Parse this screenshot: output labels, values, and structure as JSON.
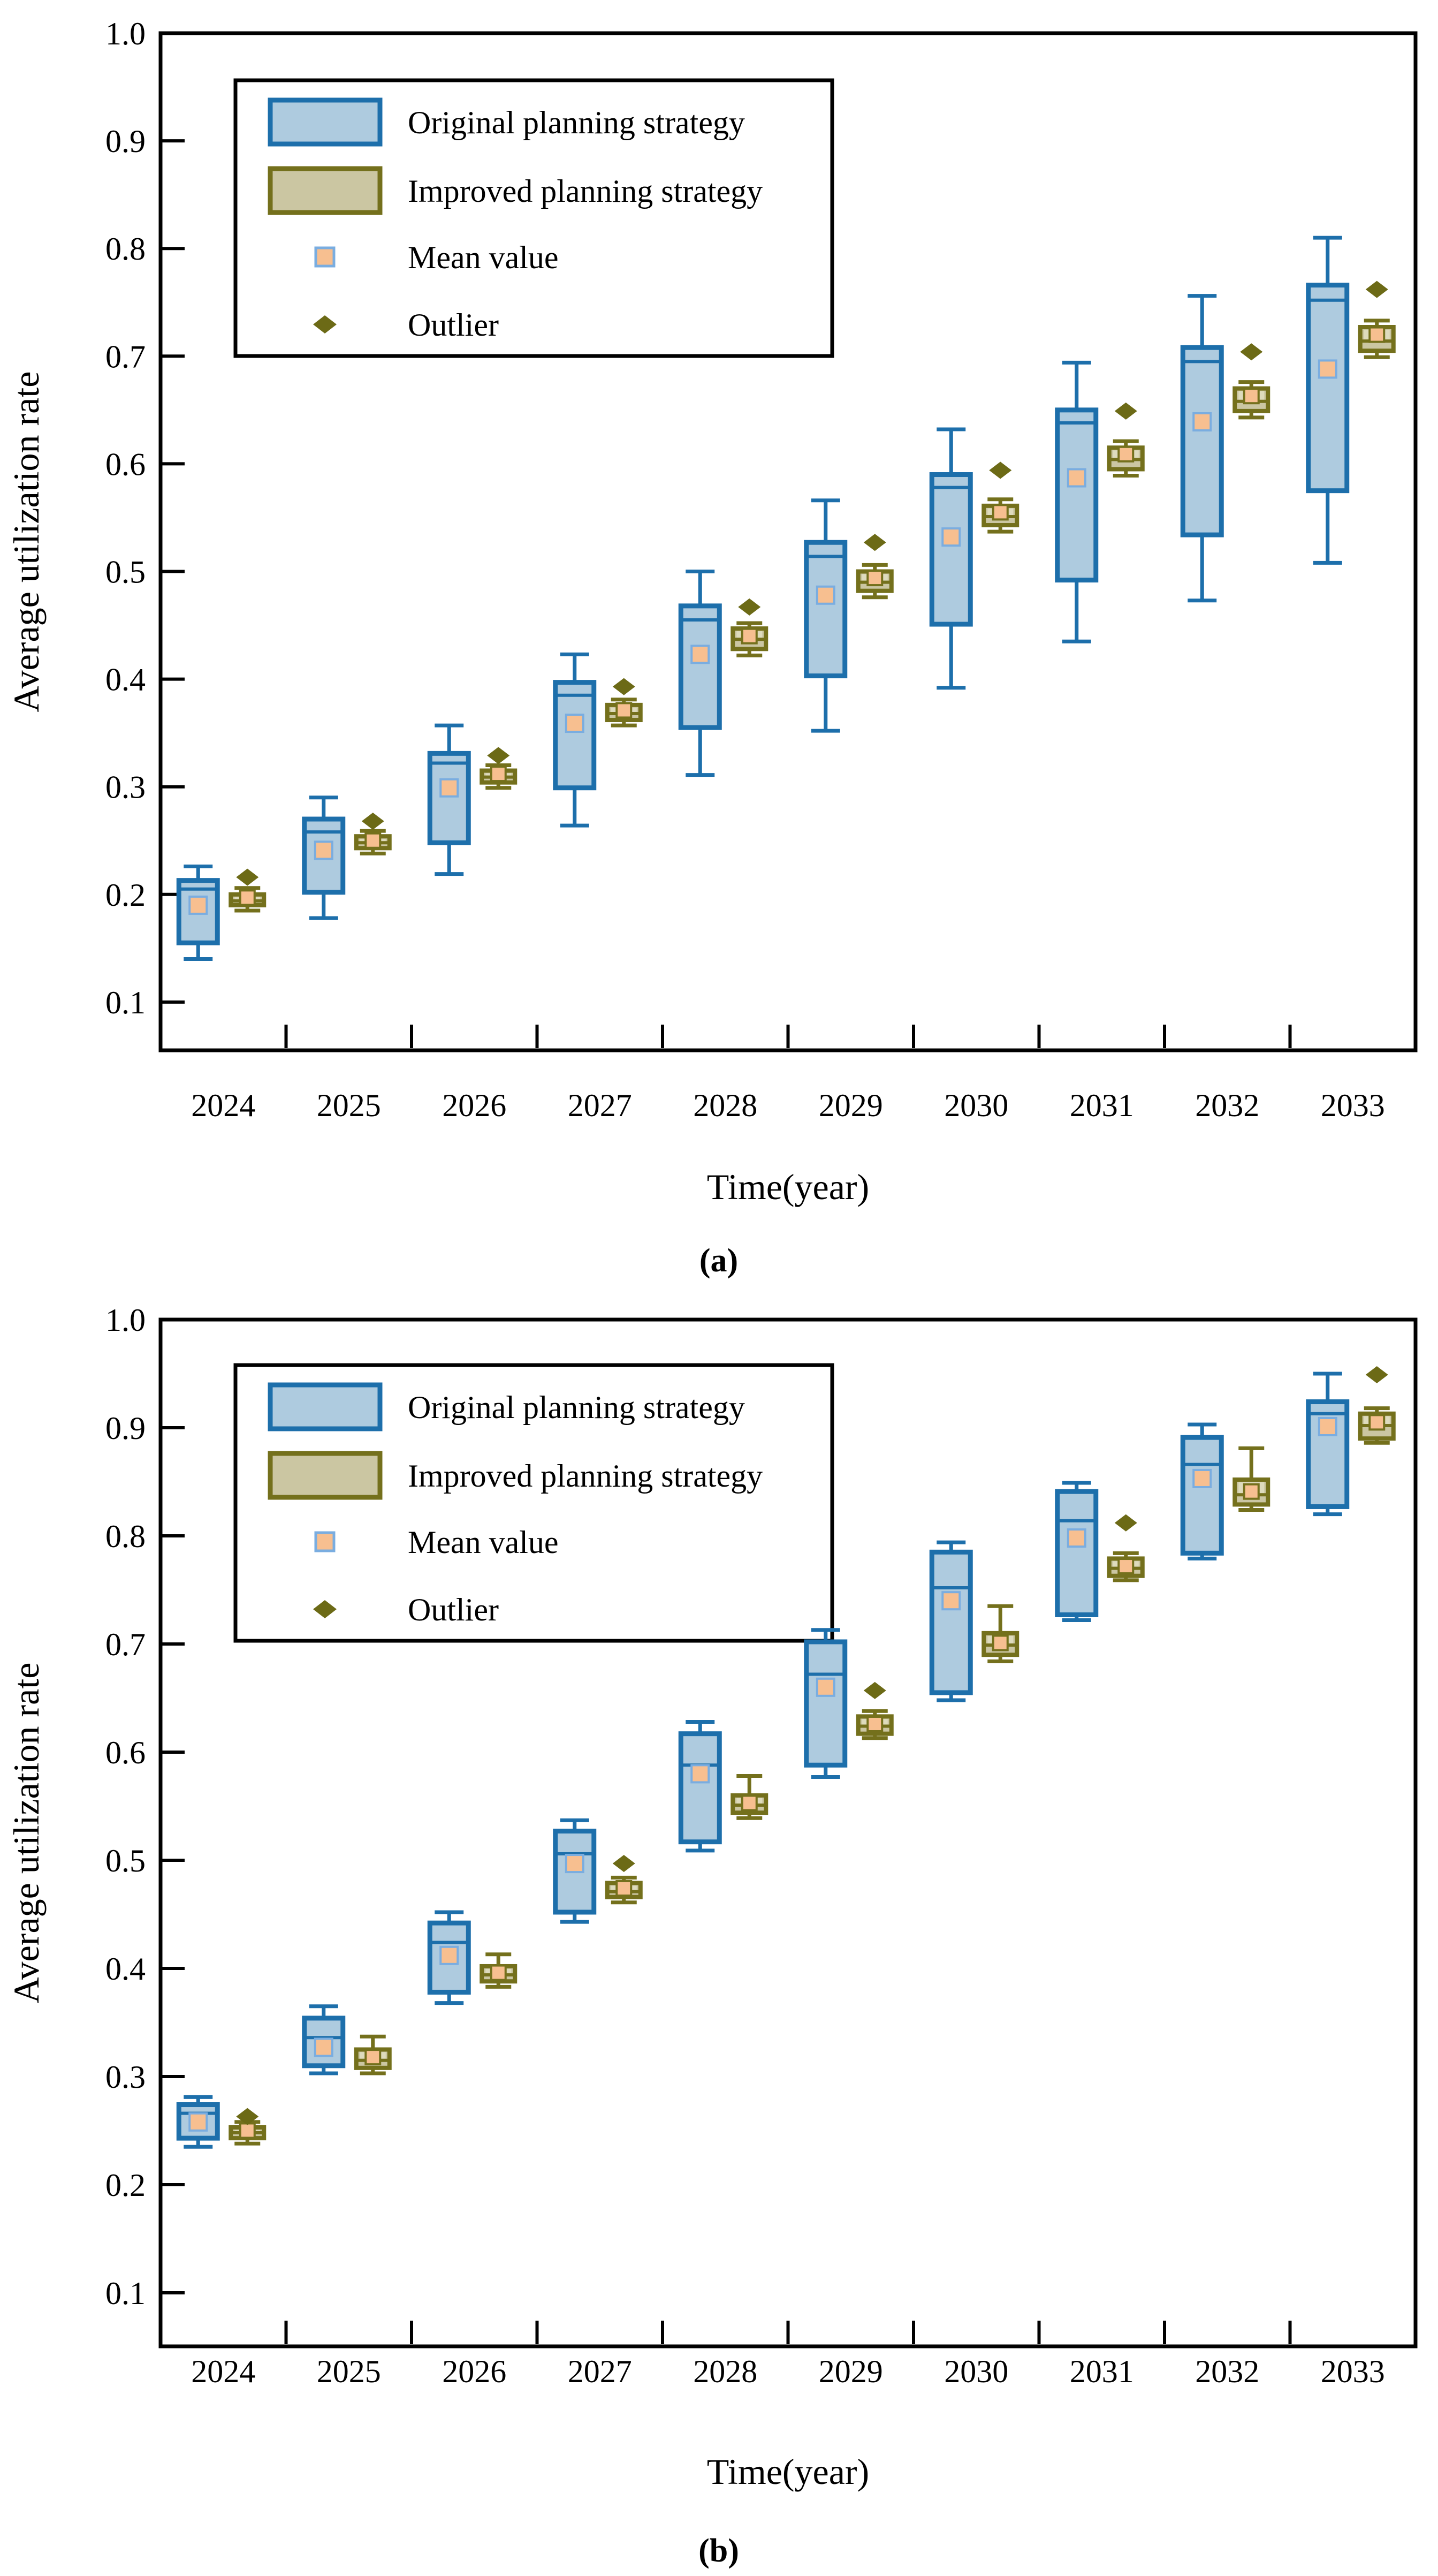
{
  "figure": {
    "background": "#ffffff",
    "captions": {
      "a": "(a)",
      "b": "(b)"
    }
  },
  "colors": {
    "frame": "#000000",
    "original_fill": "#aecbdf",
    "original_border": "#1d6fab",
    "improved_fill": "#cbc6a2",
    "improved_fill_light": "#dedbbd",
    "improved_border": "#74701c",
    "mean_fill": "#f7bf90",
    "mean_border_blue": "#7aade0",
    "outlier": "#6c6a16",
    "text": "#000000"
  },
  "chart_data": [
    {
      "type": "boxplot",
      "caption": "(a)",
      "xlabel": "Time(year)",
      "ylabel": "Average utilization rate",
      "ylim": [
        0.05,
        1.0
      ],
      "yticks": [
        0.1,
        0.2,
        0.3,
        0.4,
        0.5,
        0.6,
        0.7,
        0.8,
        0.9,
        1.0
      ],
      "grid": false,
      "legend_position": "upper-left",
      "legend": [
        {
          "label": "Original planning strategy",
          "marker": "box-blue"
        },
        {
          "label": "Improved planning strategy",
          "marker": "box-olive"
        },
        {
          "label": "Mean value",
          "marker": "square"
        },
        {
          "label": "Outlier",
          "marker": "diamond"
        }
      ],
      "categories": [
        "2024",
        "2025",
        "2026",
        "2027",
        "2028",
        "2029",
        "2030",
        "2031",
        "2032",
        "2033"
      ],
      "series": [
        {
          "name": "Original planning strategy",
          "boxes": [
            {
              "year": "2024",
              "min": 0.14,
              "q1": 0.155,
              "med": 0.205,
              "q3": 0.213,
              "max": 0.226,
              "mean": 0.19,
              "outlier": null
            },
            {
              "year": "2025",
              "min": 0.178,
              "q1": 0.202,
              "med": 0.258,
              "q3": 0.27,
              "max": 0.29,
              "mean": 0.241,
              "outlier": null
            },
            {
              "year": "2026",
              "min": 0.219,
              "q1": 0.248,
              "med": 0.322,
              "q3": 0.331,
              "max": 0.357,
              "mean": 0.299,
              "outlier": null
            },
            {
              "year": "2027",
              "min": 0.264,
              "q1": 0.299,
              "med": 0.385,
              "q3": 0.397,
              "max": 0.423,
              "mean": 0.359,
              "outlier": null
            },
            {
              "year": "2028",
              "min": 0.311,
              "q1": 0.355,
              "med": 0.455,
              "q3": 0.468,
              "max": 0.5,
              "mean": 0.423,
              "outlier": null
            },
            {
              "year": "2029",
              "min": 0.352,
              "q1": 0.403,
              "med": 0.514,
              "q3": 0.527,
              "max": 0.566,
              "mean": 0.478,
              "outlier": null
            },
            {
              "year": "2030",
              "min": 0.392,
              "q1": 0.451,
              "med": 0.578,
              "q3": 0.59,
              "max": 0.632,
              "mean": 0.532,
              "outlier": null
            },
            {
              "year": "2031",
              "min": 0.435,
              "q1": 0.492,
              "med": 0.638,
              "q3": 0.65,
              "max": 0.694,
              "mean": 0.587,
              "outlier": null
            },
            {
              "year": "2032",
              "min": 0.473,
              "q1": 0.534,
              "med": 0.695,
              "q3": 0.708,
              "max": 0.756,
              "mean": 0.639,
              "outlier": null
            },
            {
              "year": "2033",
              "min": 0.508,
              "q1": 0.575,
              "med": 0.752,
              "q3": 0.766,
              "max": 0.81,
              "mean": 0.688,
              "outlier": null
            }
          ]
        },
        {
          "name": "Improved planning strategy",
          "boxes": [
            {
              "year": "2024",
              "min": 0.185,
              "q1": 0.19,
              "med": 0.194,
              "q3": 0.2,
              "max": 0.206,
              "mean": 0.197,
              "outlier": 0.216
            },
            {
              "year": "2025",
              "min": 0.238,
              "q1": 0.243,
              "med": 0.248,
              "q3": 0.254,
              "max": 0.259,
              "mean": 0.25,
              "outlier": 0.268
            },
            {
              "year": "2026",
              "min": 0.299,
              "q1": 0.304,
              "med": 0.309,
              "q3": 0.315,
              "max": 0.32,
              "mean": 0.312,
              "outlier": 0.329
            },
            {
              "year": "2027",
              "min": 0.357,
              "q1": 0.362,
              "med": 0.368,
              "q3": 0.376,
              "max": 0.381,
              "mean": 0.371,
              "outlier": 0.393
            },
            {
              "year": "2028",
              "min": 0.422,
              "q1": 0.428,
              "med": 0.437,
              "q3": 0.447,
              "max": 0.452,
              "mean": 0.44,
              "outlier": 0.467
            },
            {
              "year": "2029",
              "min": 0.476,
              "q1": 0.482,
              "med": 0.49,
              "q3": 0.5,
              "max": 0.506,
              "mean": 0.494,
              "outlier": 0.527
            },
            {
              "year": "2030",
              "min": 0.537,
              "q1": 0.543,
              "med": 0.551,
              "q3": 0.561,
              "max": 0.567,
              "mean": 0.555,
              "outlier": 0.594
            },
            {
              "year": "2031",
              "min": 0.589,
              "q1": 0.595,
              "med": 0.604,
              "q3": 0.615,
              "max": 0.621,
              "mean": 0.609,
              "outlier": 0.649
            },
            {
              "year": "2032",
              "min": 0.643,
              "q1": 0.649,
              "med": 0.658,
              "q3": 0.67,
              "max": 0.676,
              "mean": 0.663,
              "outlier": 0.704
            },
            {
              "year": "2033",
              "min": 0.699,
              "q1": 0.705,
              "med": 0.714,
              "q3": 0.727,
              "max": 0.733,
              "mean": 0.72,
              "outlier": 0.762
            }
          ]
        }
      ]
    },
    {
      "type": "boxplot",
      "caption": "(b)",
      "xlabel": "Time(year)",
      "ylabel": "Average utilization rate",
      "ylim": [
        0.05,
        1.0
      ],
      "yticks": [
        0.1,
        0.2,
        0.3,
        0.4,
        0.5,
        0.6,
        0.7,
        0.8,
        0.9,
        1.0
      ],
      "grid": false,
      "legend_position": "upper-left",
      "legend": [
        {
          "label": "Original planning strategy",
          "marker": "box-blue"
        },
        {
          "label": "Improved planning strategy",
          "marker": "box-olive"
        },
        {
          "label": "Mean value",
          "marker": "square"
        },
        {
          "label": "Outlier",
          "marker": "diamond"
        }
      ],
      "categories": [
        "2024",
        "2025",
        "2026",
        "2027",
        "2028",
        "2029",
        "2030",
        "2031",
        "2032",
        "2033"
      ],
      "series": [
        {
          "name": "Original planning strategy",
          "boxes": [
            {
              "year": "2024",
              "min": 0.235,
              "q1": 0.243,
              "med": 0.266,
              "q3": 0.274,
              "max": 0.281,
              "mean": 0.258,
              "outlier": null
            },
            {
              "year": "2025",
              "min": 0.303,
              "q1": 0.31,
              "med": 0.336,
              "q3": 0.354,
              "max": 0.365,
              "mean": 0.327,
              "outlier": null
            },
            {
              "year": "2026",
              "min": 0.368,
              "q1": 0.378,
              "med": 0.424,
              "q3": 0.442,
              "max": 0.452,
              "mean": 0.412,
              "outlier": null
            },
            {
              "year": "2027",
              "min": 0.443,
              "q1": 0.452,
              "med": 0.506,
              "q3": 0.527,
              "max": 0.537,
              "mean": 0.497,
              "outlier": null
            },
            {
              "year": "2028",
              "min": 0.509,
              "q1": 0.517,
              "med": 0.588,
              "q3": 0.617,
              "max": 0.628,
              "mean": 0.58,
              "outlier": null
            },
            {
              "year": "2029",
              "min": 0.577,
              "q1": 0.588,
              "med": 0.672,
              "q3": 0.702,
              "max": 0.713,
              "mean": 0.66,
              "outlier": null
            },
            {
              "year": "2030",
              "min": 0.648,
              "q1": 0.655,
              "med": 0.752,
              "q3": 0.785,
              "max": 0.794,
              "mean": 0.74,
              "outlier": null
            },
            {
              "year": "2031",
              "min": 0.722,
              "q1": 0.727,
              "med": 0.814,
              "q3": 0.841,
              "max": 0.849,
              "mean": 0.798,
              "outlier": null
            },
            {
              "year": "2032",
              "min": 0.779,
              "q1": 0.784,
              "med": 0.866,
              "q3": 0.891,
              "max": 0.903,
              "mean": 0.853,
              "outlier": null
            },
            {
              "year": "2033",
              "min": 0.82,
              "q1": 0.827,
              "med": 0.913,
              "q3": 0.924,
              "max": 0.95,
              "mean": 0.901,
              "outlier": null
            }
          ]
        },
        {
          "name": "Improved planning strategy",
          "boxes": [
            {
              "year": "2024",
              "min": 0.238,
              "q1": 0.243,
              "med": 0.248,
              "q3": 0.253,
              "max": 0.258,
              "mean": 0.25,
              "outlier": 0.263
            },
            {
              "year": "2025",
              "min": 0.303,
              "q1": 0.308,
              "med": 0.315,
              "q3": 0.325,
              "max": 0.337,
              "mean": 0.318,
              "outlier": null
            },
            {
              "year": "2026",
              "min": 0.383,
              "q1": 0.388,
              "med": 0.394,
              "q3": 0.402,
              "max": 0.413,
              "mean": 0.396,
              "outlier": null
            },
            {
              "year": "2027",
              "min": 0.461,
              "q1": 0.466,
              "med": 0.471,
              "q3": 0.479,
              "max": 0.484,
              "mean": 0.474,
              "outlier": 0.497
            },
            {
              "year": "2028",
              "min": 0.539,
              "q1": 0.544,
              "med": 0.551,
              "q3": 0.56,
              "max": 0.578,
              "mean": 0.553,
              "outlier": null
            },
            {
              "year": "2029",
              "min": 0.613,
              "q1": 0.617,
              "med": 0.624,
              "q3": 0.633,
              "max": 0.638,
              "mean": 0.626,
              "outlier": 0.657
            },
            {
              "year": "2030",
              "min": 0.684,
              "q1": 0.69,
              "med": 0.699,
              "q3": 0.71,
              "max": 0.735,
              "mean": 0.701,
              "outlier": null
            },
            {
              "year": "2031",
              "min": 0.759,
              "q1": 0.763,
              "med": 0.77,
              "q3": 0.779,
              "max": 0.784,
              "mean": 0.772,
              "outlier": 0.812
            },
            {
              "year": "2032",
              "min": 0.824,
              "q1": 0.829,
              "med": 0.838,
              "q3": 0.852,
              "max": 0.881,
              "mean": 0.841,
              "outlier": null
            },
            {
              "year": "2033",
              "min": 0.886,
              "q1": 0.89,
              "med": 0.902,
              "q3": 0.913,
              "max": 0.918,
              "mean": 0.905,
              "outlier": 0.949
            }
          ]
        }
      ]
    }
  ]
}
